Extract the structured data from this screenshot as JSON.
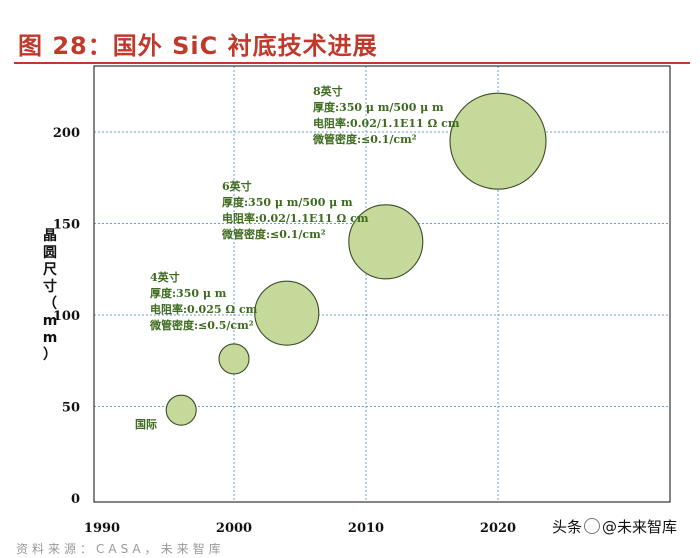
{
  "figure_title": "图 28：国外 SiC 衬底技术进展",
  "footer_text": "资料来源：CASA，未来智库",
  "watermark": {
    "prefix": "头条",
    "handle": "@未来智库"
  },
  "chart_data": {
    "type": "scatter",
    "title": "",
    "ylabel": "晶圆尺寸（mm）",
    "xlim": [
      1990,
      2020
    ],
    "ylim": [
      0,
      200
    ],
    "x_ticks": [
      "1990",
      "2000",
      "2010",
      "2020"
    ],
    "y_ticks": [
      "0",
      "50",
      "100",
      "150",
      "200"
    ],
    "grid": true,
    "series": [
      {
        "points": [
          {
            "x": 1996,
            "y": 48,
            "size": "small"
          },
          {
            "x": 2000,
            "y": 76,
            "size": "small"
          },
          {
            "x": 2004,
            "y": 101,
            "size": "medium"
          },
          {
            "x": 2011.5,
            "y": 140,
            "size": "large"
          },
          {
            "x": 2020,
            "y": 195,
            "size": "xlarge"
          }
        ]
      }
    ],
    "annotations": [
      {
        "lines": [
          "国际"
        ]
      },
      {
        "lines": [
          "4英寸",
          "厚度:350 μ m",
          "电阻率:0.025 Ω cm",
          "微管密度:≤0.5/cm²"
        ]
      },
      {
        "lines": [
          "6英寸",
          "厚度:350 μ m/500 μ m",
          "电阻率:0.02/1.1E11 Ω cm",
          "微管密度:≤0.1/cm²"
        ]
      },
      {
        "lines": [
          "8英寸",
          "厚度:350 μ m/500 μ m",
          "电阻率:0.02/1.1E11 Ω cm",
          "微管密度:≤0.1/cm²"
        ]
      }
    ],
    "colors": {
      "bubble_fill": "#c5d99a",
      "bubble_stroke": "#3d4a2a",
      "annotation": "#3e6b1f",
      "grid": "#6a9fd4"
    }
  }
}
